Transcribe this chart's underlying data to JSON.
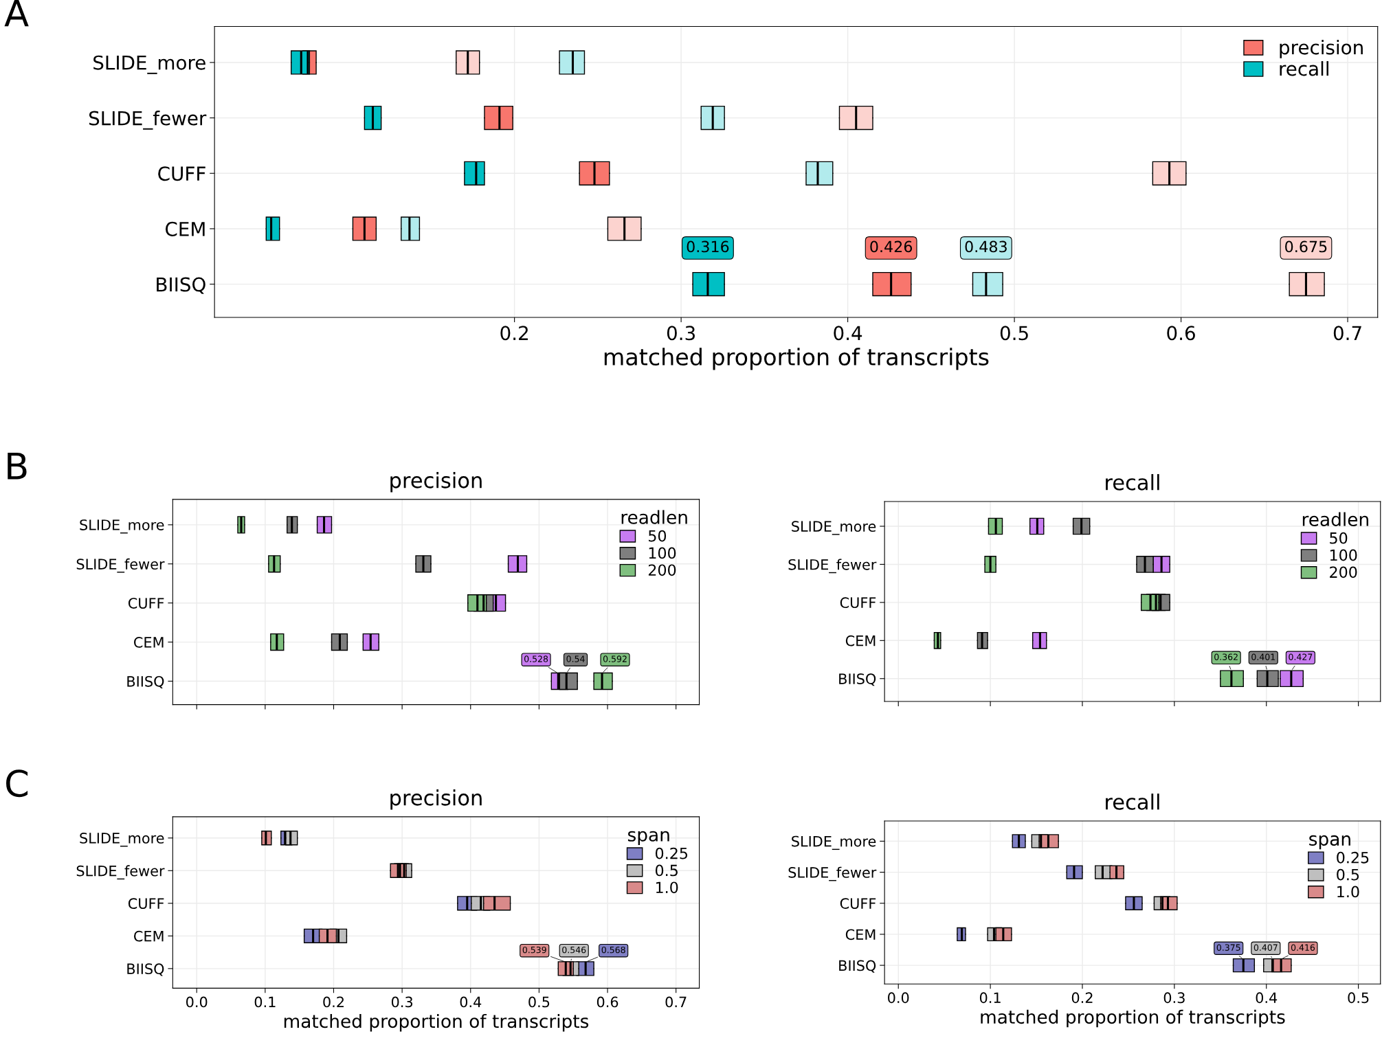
{
  "chart_data": [
    {
      "type": "box",
      "orientation": "horizontal",
      "annotations": [
        "A",
        {
          "text": "0.316",
          "x": 0.316,
          "y": "BIISQ"
        },
        {
          "text": "0.426",
          "x": 0.426,
          "y": "BIISQ"
        },
        {
          "text": "0.483",
          "x": 0.483,
          "y": "BIISQ"
        },
        {
          "text": "0.675",
          "x": 0.675,
          "y": "BIISQ"
        }
      ],
      "xlabel": "matched proportion of transcripts",
      "categories": [
        "SLIDE_more",
        "SLIDE_fewer",
        "CUFF",
        "CEM",
        "BIISQ"
      ],
      "xlim": [
        0.02,
        0.718
      ],
      "xticks": [
        0.2,
        0.3,
        0.4,
        0.5,
        0.6,
        0.7
      ],
      "grid": true,
      "legend": "top right",
      "series": [
        {
          "color": "#fcd3cf",
          "boxes": [
            {
              "low": 0.165,
              "q1": 0.165,
              "median": 0.172,
              "q3": 0.179,
              "high": 0.179
            },
            {
              "low": 0.395,
              "q1": 0.395,
              "median": 0.405,
              "q3": 0.415,
              "high": 0.415
            },
            {
              "low": 0.583,
              "q1": 0.583,
              "median": 0.593,
              "q3": 0.603,
              "high": 0.603
            },
            {
              "low": 0.256,
              "q1": 0.256,
              "median": 0.266,
              "q3": 0.276,
              "high": 0.276
            },
            {
              "low": 0.665,
              "q1": 0.665,
              "median": 0.675,
              "q3": 0.686,
              "high": 0.686
            }
          ]
        },
        {
          "color": "#b2ebed",
          "boxes": [
            {
              "low": 0.227,
              "q1": 0.227,
              "median": 0.235,
              "q3": 0.242,
              "high": 0.242
            },
            {
              "low": 0.312,
              "q1": 0.312,
              "median": 0.319,
              "q3": 0.326,
              "high": 0.326
            },
            {
              "low": 0.375,
              "q1": 0.375,
              "median": 0.382,
              "q3": 0.391,
              "high": 0.391
            },
            {
              "low": 0.132,
              "q1": 0.132,
              "median": 0.137,
              "q3": 0.143,
              "high": 0.143
            },
            {
              "low": 0.475,
              "q1": 0.475,
              "median": 0.483,
              "q3": 0.493,
              "high": 0.493
            }
          ]
        },
        {
          "name": "precision",
          "color": "#f8766d",
          "boxes": [
            {
              "low": 0.073,
              "q1": 0.073,
              "median": 0.076,
              "q3": 0.081,
              "high": 0.081
            },
            {
              "low": 0.182,
              "q1": 0.182,
              "median": 0.191,
              "q3": 0.199,
              "high": 0.199
            },
            {
              "low": 0.239,
              "q1": 0.239,
              "median": 0.248,
              "q3": 0.257,
              "high": 0.257
            },
            {
              "low": 0.103,
              "q1": 0.103,
              "median": 0.11,
              "q3": 0.117,
              "high": 0.117
            },
            {
              "low": 0.415,
              "q1": 0.415,
              "median": 0.426,
              "q3": 0.438,
              "high": 0.438
            }
          ]
        },
        {
          "name": "recall",
          "color": "#00bfc4",
          "boxes": [
            {
              "low": 0.066,
              "q1": 0.066,
              "median": 0.072,
              "q3": 0.077,
              "high": 0.077
            },
            {
              "low": 0.11,
              "q1": 0.11,
              "median": 0.115,
              "q3": 0.12,
              "high": 0.12
            },
            {
              "low": 0.17,
              "q1": 0.17,
              "median": 0.177,
              "q3": 0.182,
              "high": 0.182
            },
            {
              "low": 0.051,
              "q1": 0.051,
              "median": 0.054,
              "q3": 0.059,
              "high": 0.059
            },
            {
              "low": 0.307,
              "q1": 0.307,
              "median": 0.316,
              "q3": 0.326,
              "high": 0.326
            }
          ]
        }
      ]
    },
    {
      "type": "box",
      "orientation": "horizontal",
      "title": "precision",
      "annotations": [
        "B",
        {
          "text": "0.528",
          "x": 0.528,
          "y": "BIISQ"
        },
        {
          "text": "0.54",
          "x": 0.54,
          "y": "BIISQ"
        },
        {
          "text": "0.592",
          "x": 0.592,
          "y": "BIISQ"
        }
      ],
      "legend_title": "readlen",
      "categories": [
        "SLIDE_more",
        "SLIDE_fewer",
        "CUFF",
        "CEM",
        "BIISQ"
      ],
      "xlim": [
        -0.035,
        0.734
      ],
      "xticks": [
        0.0,
        0.1,
        0.2,
        0.3,
        0.4,
        0.5,
        0.6,
        0.7
      ],
      "tick_labels": "y",
      "grid": true,
      "legend": "top right",
      "series": [
        {
          "name": "50",
          "color": "#c77cf0",
          "boxes": [
            {
              "low": 0.176,
              "q1": 0.176,
              "median": 0.186,
              "q3": 0.197,
              "high": 0.197
            },
            {
              "low": 0.455,
              "q1": 0.455,
              "median": 0.469,
              "q3": 0.482,
              "high": 0.482
            },
            {
              "low": 0.423,
              "q1": 0.423,
              "median": 0.437,
              "q3": 0.451,
              "high": 0.451
            },
            {
              "low": 0.243,
              "q1": 0.243,
              "median": 0.254,
              "q3": 0.266,
              "high": 0.266
            },
            {
              "low": 0.518,
              "q1": 0.518,
              "median": 0.528,
              "q3": 0.542,
              "high": 0.542
            }
          ]
        },
        {
          "name": "100",
          "color": "#7f7f7f",
          "boxes": [
            {
              "low": 0.132,
              "q1": 0.132,
              "median": 0.139,
              "q3": 0.147,
              "high": 0.147
            },
            {
              "low": 0.32,
              "q1": 0.32,
              "median": 0.331,
              "q3": 0.342,
              "high": 0.342
            },
            {
              "low": 0.405,
              "q1": 0.405,
              "median": 0.419,
              "q3": 0.433,
              "high": 0.433
            },
            {
              "low": 0.197,
              "q1": 0.197,
              "median": 0.209,
              "q3": 0.22,
              "high": 0.22
            },
            {
              "low": 0.53,
              "q1": 0.53,
              "median": 0.54,
              "q3": 0.556,
              "high": 0.556
            }
          ]
        },
        {
          "name": "200",
          "color": "#7fbf7f",
          "boxes": [
            {
              "low": 0.06,
              "q1": 0.06,
              "median": 0.065,
              "q3": 0.07,
              "high": 0.07
            },
            {
              "low": 0.105,
              "q1": 0.105,
              "median": 0.113,
              "q3": 0.122,
              "high": 0.122
            },
            {
              "low": 0.396,
              "q1": 0.396,
              "median": 0.41,
              "q3": 0.423,
              "high": 0.423
            },
            {
              "low": 0.108,
              "q1": 0.108,
              "median": 0.117,
              "q3": 0.127,
              "high": 0.127
            },
            {
              "low": 0.58,
              "q1": 0.58,
              "median": 0.592,
              "q3": 0.607,
              "high": 0.607
            }
          ]
        }
      ]
    },
    {
      "type": "box",
      "orientation": "horizontal",
      "title": "recall",
      "annotations": [
        {
          "text": "0.362",
          "x": 0.362,
          "y": "BIISQ"
        },
        {
          "text": "0.401",
          "x": 0.401,
          "y": "BIISQ"
        },
        {
          "text": "0.427",
          "x": 0.427,
          "y": "BIISQ"
        }
      ],
      "legend_title": "readlen",
      "categories": [
        "SLIDE_more",
        "SLIDE_fewer",
        "CUFF",
        "CEM",
        "BIISQ"
      ],
      "xlim": [
        -0.015,
        0.524
      ],
      "xticks": [
        0.0,
        0.1,
        0.2,
        0.3,
        0.4,
        0.5
      ],
      "tick_labels": "y",
      "grid": true,
      "legend": "top right",
      "series": [
        {
          "name": "50",
          "color": "#c77cf0",
          "boxes": [
            {
              "low": 0.143,
              "q1": 0.143,
              "median": 0.151,
              "q3": 0.158,
              "high": 0.158
            },
            {
              "low": 0.277,
              "q1": 0.277,
              "median": 0.286,
              "q3": 0.295,
              "high": 0.295
            },
            {
              "low": 0.27,
              "q1": 0.27,
              "median": 0.28,
              "q3": 0.29,
              "high": 0.29
            },
            {
              "low": 0.146,
              "q1": 0.146,
              "median": 0.154,
              "q3": 0.161,
              "high": 0.161
            },
            {
              "low": 0.415,
              "q1": 0.415,
              "median": 0.427,
              "q3": 0.44,
              "high": 0.44
            }
          ]
        },
        {
          "name": "100",
          "color": "#7f7f7f",
          "boxes": [
            {
              "low": 0.19,
              "q1": 0.19,
              "median": 0.199,
              "q3": 0.208,
              "high": 0.208
            },
            {
              "low": 0.259,
              "q1": 0.259,
              "median": 0.268,
              "q3": 0.277,
              "high": 0.277
            },
            {
              "low": 0.276,
              "q1": 0.276,
              "median": 0.285,
              "q3": 0.295,
              "high": 0.295
            },
            {
              "low": 0.086,
              "q1": 0.086,
              "median": 0.091,
              "q3": 0.097,
              "high": 0.097
            },
            {
              "low": 0.39,
              "q1": 0.39,
              "median": 0.401,
              "q3": 0.413,
              "high": 0.413
            }
          ]
        },
        {
          "name": "200",
          "color": "#7fbf7f",
          "boxes": [
            {
              "low": 0.098,
              "q1": 0.098,
              "median": 0.106,
              "q3": 0.113,
              "high": 0.113
            },
            {
              "low": 0.094,
              "q1": 0.094,
              "median": 0.1,
              "q3": 0.106,
              "high": 0.106
            },
            {
              "low": 0.264,
              "q1": 0.264,
              "median": 0.274,
              "q3": 0.283,
              "high": 0.283
            },
            {
              "low": 0.039,
              "q1": 0.039,
              "median": 0.043,
              "q3": 0.046,
              "high": 0.046
            },
            {
              "low": 0.35,
              "q1": 0.35,
              "median": 0.362,
              "q3": 0.375,
              "high": 0.375
            }
          ]
        }
      ]
    },
    {
      "type": "box",
      "orientation": "horizontal",
      "title": "precision",
      "xlabel": "matched proportion of transcripts",
      "annotations": [
        "C",
        {
          "text": "0.539",
          "x": 0.539,
          "y": "BIISQ"
        },
        {
          "text": "0.546",
          "x": 0.546,
          "y": "BIISQ"
        },
        {
          "text": "0.568",
          "x": 0.568,
          "y": "BIISQ"
        }
      ],
      "legend_title": "span",
      "categories": [
        "SLIDE_more",
        "SLIDE_fewer",
        "CUFF",
        "CEM",
        "BIISQ"
      ],
      "xlim": [
        -0.035,
        0.734
      ],
      "xticks": [
        {
          "value": 0.0,
          "label": "0.0"
        },
        0.1,
        0.2,
        0.3,
        0.4,
        0.5,
        0.6,
        0.7
      ],
      "grid": true,
      "legend": "top right",
      "series": [
        {
          "name": "0.25",
          "color": "#7f7fc4",
          "boxes": [
            {
              "low": 0.123,
              "q1": 0.123,
              "median": 0.129,
              "q3": 0.139,
              "high": 0.139
            },
            {
              "low": 0.289,
              "q1": 0.289,
              "median": 0.297,
              "q3": 0.309,
              "high": 0.309
            },
            {
              "low": 0.381,
              "q1": 0.381,
              "median": 0.395,
              "q3": 0.409,
              "high": 0.409
            },
            {
              "low": 0.157,
              "q1": 0.157,
              "median": 0.17,
              "q3": 0.183,
              "high": 0.183
            },
            {
              "low": 0.555,
              "q1": 0.555,
              "median": 0.568,
              "q3": 0.58,
              "high": 0.58
            }
          ]
        },
        {
          "name": "0.5",
          "color": "#bfbfbf",
          "boxes": [
            {
              "low": 0.13,
              "q1": 0.13,
              "median": 0.137,
              "q3": 0.147,
              "high": 0.147
            },
            {
              "low": 0.293,
              "q1": 0.293,
              "median": 0.303,
              "q3": 0.314,
              "high": 0.314
            },
            {
              "low": 0.401,
              "q1": 0.401,
              "median": 0.415,
              "q3": 0.428,
              "high": 0.428
            },
            {
              "low": 0.195,
              "q1": 0.195,
              "median": 0.207,
              "q3": 0.219,
              "high": 0.219
            },
            {
              "low": 0.535,
              "q1": 0.535,
              "median": 0.546,
              "q3": 0.558,
              "high": 0.558
            }
          ]
        },
        {
          "name": "1.0",
          "color": "#d98a8a",
          "boxes": [
            {
              "low": 0.095,
              "q1": 0.095,
              "median": 0.101,
              "q3": 0.109,
              "high": 0.109
            },
            {
              "low": 0.283,
              "q1": 0.283,
              "median": 0.294,
              "q3": 0.306,
              "high": 0.306
            },
            {
              "low": 0.419,
              "q1": 0.419,
              "median": 0.435,
              "q3": 0.458,
              "high": 0.458
            },
            {
              "low": 0.179,
              "q1": 0.179,
              "median": 0.191,
              "q3": 0.204,
              "high": 0.204
            },
            {
              "low": 0.528,
              "q1": 0.528,
              "median": 0.539,
              "q3": 0.55,
              "high": 0.55
            }
          ]
        }
      ]
    },
    {
      "type": "box",
      "orientation": "horizontal",
      "title": "recall",
      "xlabel": "matched proportion of transcripts",
      "annotations": [
        {
          "text": "0.375",
          "x": 0.375,
          "y": "BIISQ"
        },
        {
          "text": "0.407",
          "x": 0.407,
          "y": "BIISQ"
        },
        {
          "text": "0.416",
          "x": 0.416,
          "y": "BIISQ"
        }
      ],
      "legend_title": "span",
      "categories": [
        "SLIDE_more",
        "SLIDE_fewer",
        "CUFF",
        "CEM",
        "BIISQ"
      ],
      "xlim": [
        -0.015,
        0.524
      ],
      "xticks": [
        {
          "value": 0.0,
          "label": "0.0"
        },
        0.1,
        0.2,
        0.3,
        0.4,
        0.5
      ],
      "grid": true,
      "legend": "top right",
      "series": [
        {
          "name": "0.25",
          "color": "#7f7fc4",
          "boxes": [
            {
              "low": 0.124,
              "q1": 0.124,
              "median": 0.131,
              "q3": 0.138,
              "high": 0.138
            },
            {
              "low": 0.183,
              "q1": 0.183,
              "median": 0.191,
              "q3": 0.2,
              "high": 0.2
            },
            {
              "low": 0.247,
              "q1": 0.247,
              "median": 0.256,
              "q3": 0.265,
              "high": 0.265
            },
            {
              "low": 0.064,
              "q1": 0.064,
              "median": 0.069,
              "q3": 0.073,
              "high": 0.073
            },
            {
              "low": 0.364,
              "q1": 0.364,
              "median": 0.375,
              "q3": 0.387,
              "high": 0.387
            }
          ]
        },
        {
          "name": "0.5",
          "color": "#bfbfbf",
          "boxes": [
            {
              "low": 0.145,
              "q1": 0.145,
              "median": 0.155,
              "q3": 0.162,
              "high": 0.162
            },
            {
              "low": 0.214,
              "q1": 0.214,
              "median": 0.222,
              "q3": 0.232,
              "high": 0.232
            },
            {
              "low": 0.278,
              "q1": 0.278,
              "median": 0.287,
              "q3": 0.295,
              "high": 0.295
            },
            {
              "low": 0.097,
              "q1": 0.097,
              "median": 0.104,
              "q3": 0.112,
              "high": 0.112
            },
            {
              "low": 0.397,
              "q1": 0.397,
              "median": 0.407,
              "q3": 0.417,
              "high": 0.417
            }
          ]
        },
        {
          "name": "1.0",
          "color": "#d98a8a",
          "boxes": [
            {
              "low": 0.153,
              "q1": 0.153,
              "median": 0.163,
              "q3": 0.174,
              "high": 0.174
            },
            {
              "low": 0.23,
              "q1": 0.23,
              "median": 0.237,
              "q3": 0.245,
              "high": 0.245
            },
            {
              "low": 0.285,
              "q1": 0.285,
              "median": 0.293,
              "q3": 0.303,
              "high": 0.303
            },
            {
              "low": 0.106,
              "q1": 0.106,
              "median": 0.114,
              "q3": 0.123,
              "high": 0.123
            },
            {
              "low": 0.406,
              "q1": 0.406,
              "median": 0.416,
              "q3": 0.427,
              "high": 0.427
            }
          ]
        }
      ]
    }
  ]
}
